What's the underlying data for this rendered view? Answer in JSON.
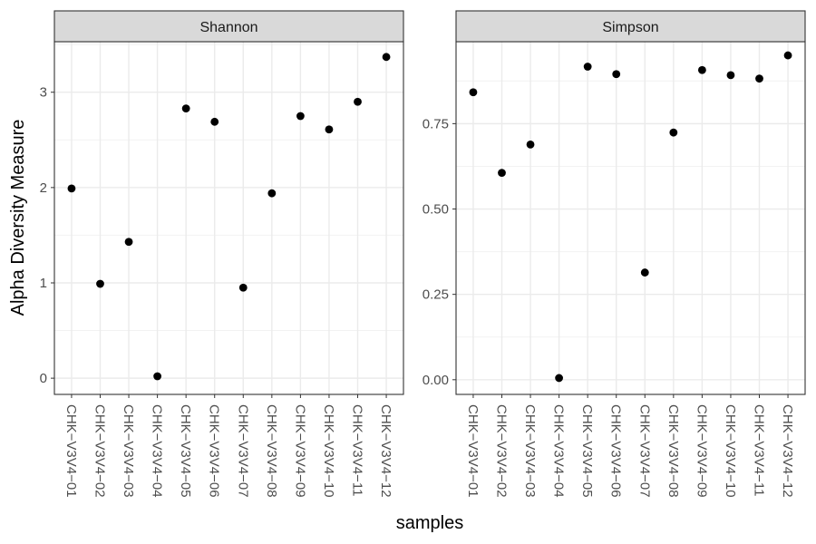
{
  "chart_data": {
    "type": "scatter",
    "xlabel": "samples",
    "ylabel": "Alpha Diversity Measure",
    "categories": [
      "CHK−V3V4−01",
      "CHK−V3V4−02",
      "CHK−V3V4−03",
      "CHK−V3V4−04",
      "CHK−V3V4−05",
      "CHK−V3V4−06",
      "CHK−V3V4−07",
      "CHK−V3V4−08",
      "CHK−V3V4−09",
      "CHK−V3V4−10",
      "CHK−V3V4−11",
      "CHK−V3V4−12"
    ],
    "grid": true,
    "point_color": "#000000",
    "panels": [
      {
        "title": "Shannon",
        "values": [
          1.99,
          0.99,
          1.43,
          0.02,
          2.83,
          2.69,
          0.95,
          1.94,
          2.75,
          2.61,
          2.9,
          3.37
        ],
        "ylim": [
          -0.17,
          3.53
        ],
        "yticks": [
          0,
          1,
          2,
          3
        ],
        "ytick_labels": [
          "0",
          "1",
          "2",
          "3"
        ]
      },
      {
        "title": "Simpson",
        "values": [
          0.842,
          0.606,
          0.689,
          0.005,
          0.917,
          0.895,
          0.314,
          0.724,
          0.907,
          0.892,
          0.882,
          0.95
        ],
        "ylim": [
          -0.043,
          0.99
        ],
        "yticks": [
          0,
          0.25,
          0.5,
          0.75
        ],
        "ytick_labels": [
          "0.00",
          "0.25",
          "0.50",
          "0.75"
        ]
      }
    ]
  }
}
